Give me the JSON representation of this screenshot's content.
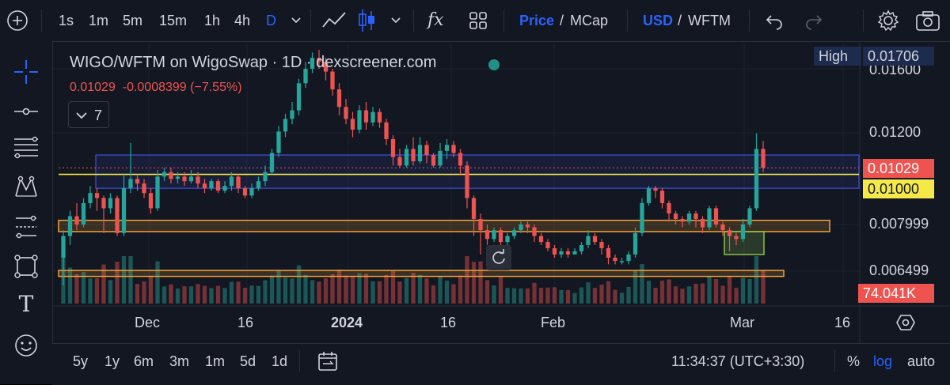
{
  "toolbar": {
    "intervals": [
      "1s",
      "1m",
      "5m",
      "15m",
      "1h",
      "4h",
      "D"
    ],
    "active_interval": "D",
    "price_label": "Price",
    "mcap_label": "MCap",
    "usd_label": "USD",
    "quote_label": "WFTM",
    "separator": "/"
  },
  "legend": {
    "title": "WIGO/WFTM on WigoSwap · 1D · dexscreener.com",
    "last": "0.01029",
    "change": "-0.0008399",
    "change_pct": "(−7.55%)",
    "indicators_count": "7"
  },
  "price_axis": {
    "labels": [
      "0.01600",
      "0.01200",
      "0.007999",
      "0.006499"
    ],
    "high_label": "High",
    "high_value": "0.01706",
    "last_price_tag": "0.01029",
    "line_tag": "0.01000",
    "volume_tag": "74.041K"
  },
  "time_axis": {
    "labels": [
      "Dec",
      "16",
      "2024",
      "16",
      "Feb",
      "Mar",
      "16"
    ]
  },
  "bottom": {
    "ranges": [
      "5y",
      "1y",
      "6m",
      "3m",
      "1m",
      "5d",
      "1d"
    ],
    "clock": "11:34:37 (UTC+3:30)",
    "percent": "%",
    "log": "log",
    "auto": "auto"
  },
  "colors": {
    "up": "#26a69a",
    "down": "#ef5350",
    "accent": "#2962ff",
    "yellow_line": "#f5e94a",
    "orange_box": "#f0a23a",
    "blue_box": "#3f51d8",
    "green_box": "#8bc34a"
  },
  "chart_data": {
    "type": "candlestick",
    "pair": "WIGO/WFTM",
    "exchange": "WigoSwap",
    "interval": "1D",
    "scale": "log",
    "price_range": [
      0.0058,
      0.0175
    ],
    "last_price": 0.01029,
    "change": -0.0008399,
    "change_pct": -7.55,
    "high": 0.01706,
    "horizontal_line": 0.01,
    "volume_last": "74.041K",
    "candles": [
      [
        0.0069,
        0.0076,
        0.0061,
        0.0078
      ],
      [
        0.0076,
        0.0083,
        0.0073,
        0.0085
      ],
      [
        0.0083,
        0.008,
        0.0078,
        0.0088
      ],
      [
        0.008,
        0.0088,
        0.0079,
        0.009
      ],
      [
        0.0088,
        0.0092,
        0.0086,
        0.0095
      ],
      [
        0.0092,
        0.009,
        0.0085,
        0.0094
      ],
      [
        0.009,
        0.0086,
        0.0077,
        0.0091
      ],
      [
        0.0086,
        0.009,
        0.0084,
        0.0092
      ],
      [
        0.009,
        0.0077,
        0.0076,
        0.0091
      ],
      [
        0.0077,
        0.0094,
        0.0076,
        0.01
      ],
      [
        0.0094,
        0.0098,
        0.0092,
        0.0115
      ],
      [
        0.0098,
        0.0096,
        0.0093,
        0.01
      ],
      [
        0.0096,
        0.0092,
        0.009,
        0.0098
      ],
      [
        0.0092,
        0.0086,
        0.0084,
        0.0094
      ],
      [
        0.0086,
        0.0099,
        0.0085,
        0.0102
      ],
      [
        0.0099,
        0.0101,
        0.0097,
        0.0103
      ],
      [
        0.0101,
        0.0098,
        0.0096,
        0.0103
      ],
      [
        0.0098,
        0.0099,
        0.0096,
        0.0101
      ],
      [
        0.0099,
        0.0097,
        0.0095,
        0.0101
      ],
      [
        0.0097,
        0.0099,
        0.0096,
        0.0102
      ],
      [
        0.0099,
        0.0096,
        0.0094,
        0.0101
      ],
      [
        0.0096,
        0.0094,
        0.0092,
        0.0098
      ],
      [
        0.0094,
        0.0097,
        0.0093,
        0.0098
      ],
      [
        0.0097,
        0.0093,
        0.0092,
        0.0098
      ],
      [
        0.0093,
        0.0095,
        0.0092,
        0.0097
      ],
      [
        0.0095,
        0.0099,
        0.0093,
        0.0101
      ],
      [
        0.0099,
        0.0094,
        0.0092,
        0.01
      ],
      [
        0.0094,
        0.0091,
        0.009,
        0.0095
      ],
      [
        0.0091,
        0.0094,
        0.009,
        0.0096
      ],
      [
        0.0094,
        0.0097,
        0.0093,
        0.0099
      ],
      [
        0.0097,
        0.0101,
        0.0095,
        0.0104
      ],
      [
        0.0101,
        0.011,
        0.01,
        0.0112
      ],
      [
        0.011,
        0.0121,
        0.0108,
        0.0124
      ],
      [
        0.0121,
        0.0128,
        0.0118,
        0.0131
      ],
      [
        0.0128,
        0.0133,
        0.0125,
        0.0138
      ],
      [
        0.0133,
        0.015,
        0.013,
        0.0153
      ],
      [
        0.015,
        0.016,
        0.0147,
        0.0165
      ],
      [
        0.016,
        0.0168,
        0.0157,
        0.0172
      ],
      [
        0.0168,
        0.0165,
        0.016,
        0.0174
      ],
      [
        0.0165,
        0.0158,
        0.0152,
        0.0168
      ],
      [
        0.0158,
        0.0146,
        0.0142,
        0.016
      ],
      [
        0.0146,
        0.0135,
        0.013,
        0.015
      ],
      [
        0.0135,
        0.0128,
        0.0125,
        0.014
      ],
      [
        0.0128,
        0.0122,
        0.0118,
        0.0132
      ],
      [
        0.0122,
        0.0133,
        0.012,
        0.0136
      ],
      [
        0.0133,
        0.0126,
        0.0122,
        0.0138
      ],
      [
        0.0126,
        0.0132,
        0.0124,
        0.0135
      ],
      [
        0.0132,
        0.0126,
        0.0123,
        0.0134
      ],
      [
        0.0126,
        0.0117,
        0.0114,
        0.0128
      ],
      [
        0.0117,
        0.0108,
        0.0104,
        0.0119
      ],
      [
        0.0108,
        0.0104,
        0.0103,
        0.0112
      ],
      [
        0.0104,
        0.0112,
        0.0103,
        0.0114
      ],
      [
        0.0112,
        0.0106,
        0.0104,
        0.0118
      ],
      [
        0.0106,
        0.0114,
        0.0105,
        0.0118
      ],
      [
        0.0114,
        0.0109,
        0.0105,
        0.0116
      ],
      [
        0.0109,
        0.0104,
        0.0103,
        0.011
      ],
      [
        0.0104,
        0.0111,
        0.0103,
        0.0115
      ],
      [
        0.0111,
        0.0114,
        0.0107,
        0.0117
      ],
      [
        0.0114,
        0.011,
        0.0108,
        0.0116
      ],
      [
        0.011,
        0.0104,
        0.01,
        0.0112
      ],
      [
        0.0104,
        0.009,
        0.0086,
        0.0106
      ],
      [
        0.009,
        0.0082,
        0.0076,
        0.0091
      ],
      [
        0.0082,
        0.0078,
        0.007,
        0.0084
      ],
      [
        0.0078,
        0.0075,
        0.0073,
        0.008
      ],
      [
        0.0075,
        0.0078,
        0.0074,
        0.0079
      ],
      [
        0.0078,
        0.0074,
        0.0071,
        0.0079
      ],
      [
        0.0074,
        0.0076,
        0.0073,
        0.0077
      ],
      [
        0.0076,
        0.0078,
        0.0075,
        0.0079
      ],
      [
        0.0078,
        0.008,
        0.0077,
        0.0081
      ],
      [
        0.008,
        0.0079,
        0.0077,
        0.0081
      ],
      [
        0.0079,
        0.0076,
        0.0074,
        0.008
      ],
      [
        0.0076,
        0.0074,
        0.0073,
        0.0077
      ],
      [
        0.0074,
        0.0072,
        0.0071,
        0.0075
      ],
      [
        0.0072,
        0.007,
        0.0069,
        0.0073
      ],
      [
        0.007,
        0.0071,
        0.0069,
        0.0072
      ],
      [
        0.0071,
        0.007,
        0.0069,
        0.0072
      ],
      [
        0.007,
        0.0071,
        0.007,
        0.0072
      ],
      [
        0.0071,
        0.0073,
        0.007,
        0.0074
      ],
      [
        0.0073,
        0.0076,
        0.0072,
        0.0078
      ],
      [
        0.0076,
        0.0074,
        0.0073,
        0.0077
      ],
      [
        0.0074,
        0.0072,
        0.007,
        0.0075
      ],
      [
        0.0072,
        0.0069,
        0.0067,
        0.0073
      ],
      [
        0.0069,
        0.0068,
        0.0067,
        0.007
      ],
      [
        0.0068,
        0.0068,
        0.0067,
        0.0069
      ],
      [
        0.0068,
        0.007,
        0.0067,
        0.0071
      ],
      [
        0.007,
        0.0077,
        0.0069,
        0.0079
      ],
      [
        0.0077,
        0.0088,
        0.0076,
        0.009
      ],
      [
        0.0088,
        0.0094,
        0.0087,
        0.0095
      ],
      [
        0.0094,
        0.0093,
        0.009,
        0.0095
      ],
      [
        0.0093,
        0.0088,
        0.0086,
        0.0094
      ],
      [
        0.0088,
        0.0084,
        0.0081,
        0.0089
      ],
      [
        0.0084,
        0.0082,
        0.008,
        0.0085
      ],
      [
        0.0082,
        0.0081,
        0.0079,
        0.0083
      ],
      [
        0.0081,
        0.0084,
        0.008,
        0.0085
      ],
      [
        0.0084,
        0.0082,
        0.0079,
        0.0085
      ],
      [
        0.0082,
        0.0079,
        0.0077,
        0.0083
      ],
      [
        0.0079,
        0.0086,
        0.0078,
        0.0087
      ],
      [
        0.0086,
        0.008,
        0.0079,
        0.0087
      ],
      [
        0.008,
        0.0078,
        0.0076,
        0.0081
      ],
      [
        0.0078,
        0.0076,
        0.0071,
        0.0079
      ],
      [
        0.0076,
        0.0075,
        0.0073,
        0.0077
      ],
      [
        0.0075,
        0.008,
        0.0074,
        0.0082
      ],
      [
        0.008,
        0.0086,
        0.0079,
        0.0087
      ],
      [
        0.0086,
        0.0112,
        0.0085,
        0.012
      ],
      [
        0.0112,
        0.0103,
        0.0101,
        0.0116
      ]
    ]
  }
}
